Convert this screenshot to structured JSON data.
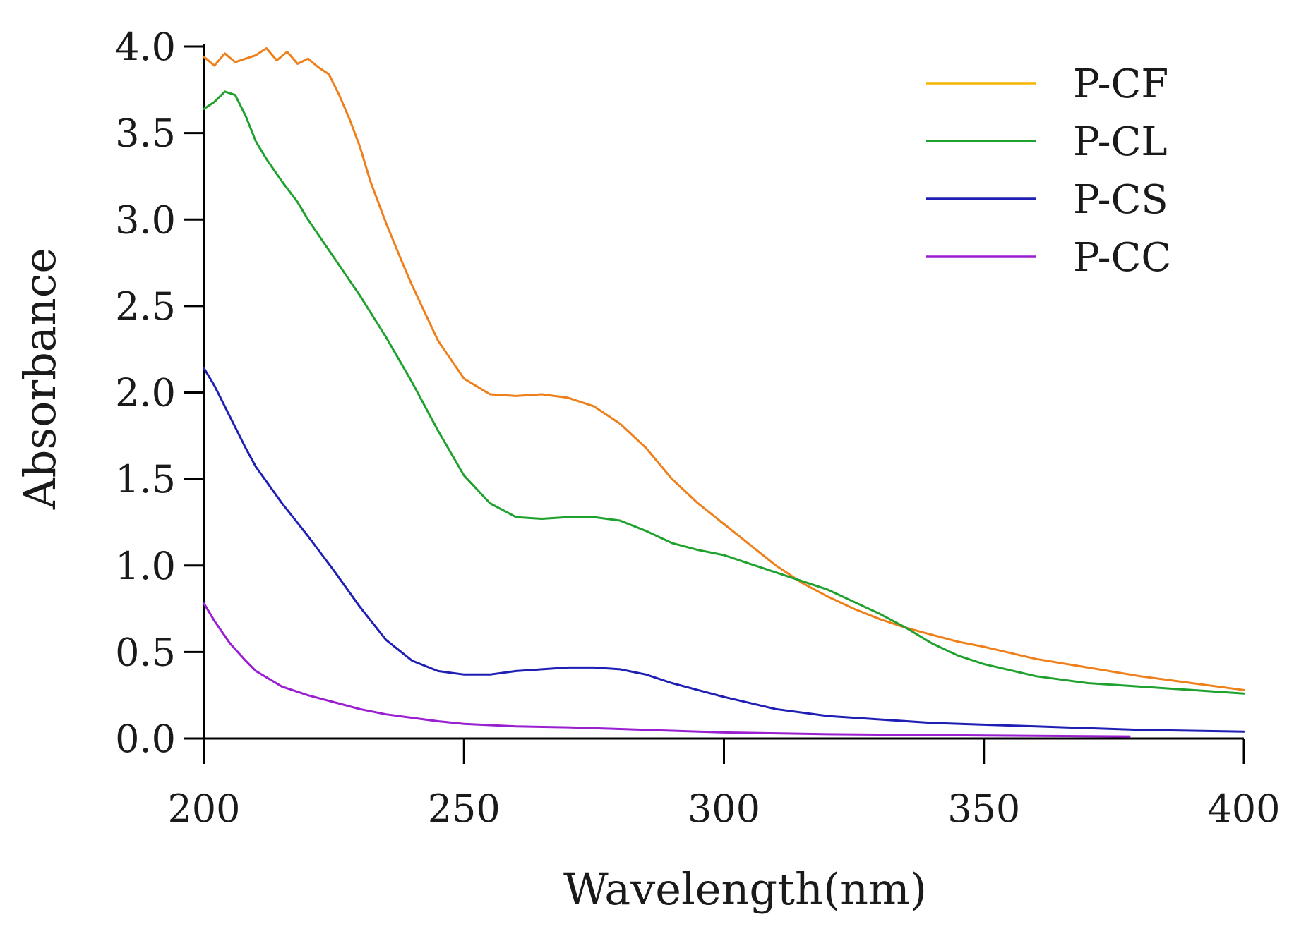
{
  "chart_data": {
    "type": "line",
    "title": "",
    "xlabel": "Wavelength(nm)",
    "ylabel": "Absorbance",
    "xlim": [
      200,
      400
    ],
    "ylim": [
      0,
      4.0
    ],
    "xticks": [
      200,
      250,
      300,
      350,
      400
    ],
    "xtick_labels": [
      "200",
      "250",
      "300",
      "350",
      "400"
    ],
    "yticks": [
      0,
      0.5,
      1.0,
      1.5,
      2.0,
      2.5,
      3.0,
      3.5,
      4.0
    ],
    "ytick_labels": [
      "0.0",
      "0.5",
      "1.0",
      "1.5",
      "2.0",
      "2.5",
      "3.0",
      "3.5",
      "4.0"
    ],
    "grid": false,
    "legend_position": "top-right",
    "series": [
      {
        "name": "P-CF",
        "legend_color": "#f5b400",
        "line_color": "#ef7f1a",
        "x": [
          200,
          202,
          204,
          206,
          208,
          210,
          212,
          214,
          216,
          218,
          220,
          222,
          224,
          226,
          228,
          230,
          232,
          235,
          238,
          240,
          245,
          250,
          255,
          260,
          265,
          270,
          275,
          280,
          285,
          290,
          295,
          300,
          305,
          310,
          315,
          320,
          325,
          330,
          335,
          340,
          345,
          350,
          360,
          370,
          380,
          390,
          400
        ],
        "y": [
          3.94,
          3.89,
          3.96,
          3.91,
          3.93,
          3.95,
          3.99,
          3.92,
          3.97,
          3.9,
          3.93,
          3.88,
          3.84,
          3.72,
          3.58,
          3.42,
          3.22,
          2.98,
          2.76,
          2.62,
          2.3,
          2.08,
          1.99,
          1.98,
          1.99,
          1.97,
          1.92,
          1.82,
          1.68,
          1.5,
          1.36,
          1.24,
          1.12,
          1.0,
          0.9,
          0.82,
          0.75,
          0.69,
          0.64,
          0.6,
          0.56,
          0.53,
          0.46,
          0.41,
          0.36,
          0.32,
          0.28
        ]
      },
      {
        "name": "P-CL",
        "legend_color": "#1fa12e",
        "line_color": "#1fa12e",
        "x": [
          200,
          202,
          204,
          206,
          208,
          210,
          212,
          215,
          218,
          220,
          225,
          230,
          235,
          240,
          245,
          250,
          255,
          260,
          265,
          270,
          275,
          280,
          285,
          290,
          295,
          300,
          305,
          310,
          315,
          320,
          325,
          330,
          335,
          340,
          345,
          350,
          360,
          370,
          380,
          390,
          400
        ],
        "y": [
          3.64,
          3.68,
          3.74,
          3.72,
          3.6,
          3.45,
          3.35,
          3.22,
          3.1,
          3.0,
          2.78,
          2.56,
          2.32,
          2.06,
          1.78,
          1.52,
          1.36,
          1.28,
          1.27,
          1.28,
          1.28,
          1.26,
          1.2,
          1.13,
          1.09,
          1.06,
          1.01,
          0.96,
          0.91,
          0.86,
          0.79,
          0.72,
          0.64,
          0.55,
          0.48,
          0.43,
          0.36,
          0.32,
          0.3,
          0.28,
          0.26
        ]
      },
      {
        "name": "P-CS",
        "legend_color": "#1f1fb4",
        "line_color": "#1f1fb4",
        "x": [
          200,
          202,
          205,
          208,
          210,
          215,
          220,
          225,
          230,
          235,
          240,
          245,
          250,
          255,
          260,
          265,
          270,
          275,
          280,
          285,
          290,
          295,
          300,
          310,
          320,
          330,
          340,
          350,
          360,
          370,
          380,
          390,
          400
        ],
        "y": [
          2.14,
          2.04,
          1.86,
          1.68,
          1.57,
          1.36,
          1.17,
          0.97,
          0.76,
          0.57,
          0.45,
          0.39,
          0.37,
          0.37,
          0.39,
          0.4,
          0.41,
          0.41,
          0.4,
          0.37,
          0.32,
          0.28,
          0.24,
          0.17,
          0.13,
          0.11,
          0.09,
          0.08,
          0.07,
          0.06,
          0.05,
          0.045,
          0.04
        ]
      },
      {
        "name": "P-CC",
        "legend_color": "#9a1fd1",
        "line_color": "#9a1fd1",
        "x": [
          200,
          202,
          205,
          208,
          210,
          215,
          220,
          225,
          230,
          235,
          240,
          245,
          250,
          260,
          270,
          280,
          290,
          300,
          320,
          340,
          360,
          378
        ],
        "y": [
          0.78,
          0.68,
          0.55,
          0.45,
          0.39,
          0.3,
          0.25,
          0.21,
          0.17,
          0.14,
          0.12,
          0.1,
          0.085,
          0.07,
          0.065,
          0.055,
          0.045,
          0.035,
          0.025,
          0.02,
          0.015,
          0.012
        ]
      }
    ]
  }
}
